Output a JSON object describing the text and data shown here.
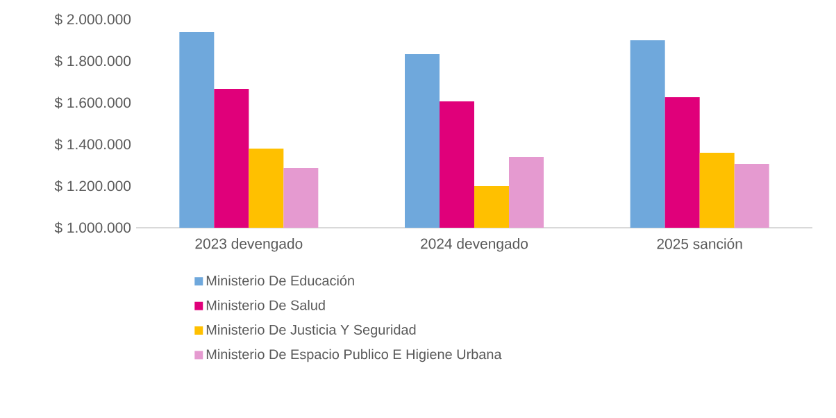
{
  "chart_data": {
    "type": "bar",
    "categories": [
      "2023 devengado",
      "2024 devengado",
      "2025 sanción"
    ],
    "series": [
      {
        "name": "Ministerio De Educación",
        "color": "#6fa8dc",
        "values": [
          1940000,
          1833000,
          1900000
        ]
      },
      {
        "name": "Ministerio De Salud",
        "color": "#e0007a",
        "values": [
          1667000,
          1607000,
          1627000
        ]
      },
      {
        "name": "Ministerio De Justicia Y Seguridad",
        "color": "#ffc000",
        "values": [
          1380000,
          1200000,
          1360000
        ]
      },
      {
        "name": "Ministerio De Espacio Publico E Higiene Urbana",
        "color": "#e59ad0",
        "values": [
          1287000,
          1340000,
          1307000
        ]
      }
    ],
    "ylim": [
      1000000,
      2000000
    ],
    "yticks": [
      {
        "value": 1000000,
        "label": "$ 1.000.000"
      },
      {
        "value": 1200000,
        "label": "$ 1.200.000"
      },
      {
        "value": 1400000,
        "label": "$ 1.400.000"
      },
      {
        "value": 1600000,
        "label": "$ 1.600.000"
      },
      {
        "value": 1800000,
        "label": "$ 1.800.000"
      },
      {
        "value": 2000000,
        "label": "$ 2.000.000"
      }
    ],
    "grid": false,
    "legend": "bottom"
  }
}
